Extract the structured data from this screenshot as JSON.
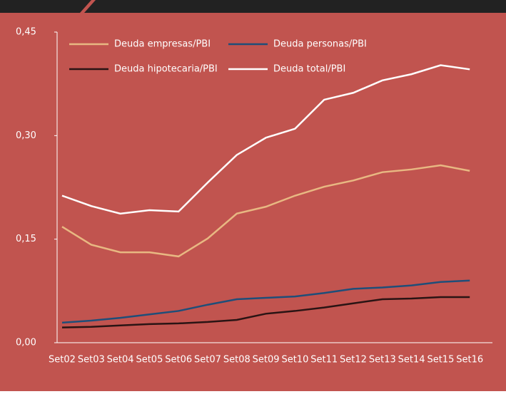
{
  "chart_data": {
    "type": "line",
    "categories": [
      "Set02",
      "Set03",
      "Set04",
      "Set05",
      "Set06",
      "Set07",
      "Set08",
      "Set09",
      "Set10",
      "Set11",
      "Set12",
      "Set13",
      "Set14",
      "Set15",
      "Set16"
    ],
    "series": [
      {
        "name": "Deuda empresas/PBI",
        "color": "#e8b882",
        "values": [
          0.168,
          0.142,
          0.131,
          0.131,
          0.125,
          0.151,
          0.187,
          0.197,
          0.213,
          0.226,
          0.235,
          0.247,
          0.251,
          0.257,
          0.249
        ]
      },
      {
        "name": "Deuda personas/PBI",
        "color": "#1f4e79",
        "values": [
          0.029,
          0.032,
          0.036,
          0.041,
          0.046,
          0.055,
          0.063,
          0.065,
          0.067,
          0.072,
          0.078,
          0.08,
          0.083,
          0.088,
          0.09
        ]
      },
      {
        "name": "Deuda hipotecaria/PBI",
        "color": "#2a1414",
        "values": [
          0.022,
          0.023,
          0.025,
          0.027,
          0.028,
          0.03,
          0.033,
          0.042,
          0.046,
          0.051,
          0.057,
          0.063,
          0.064,
          0.066,
          0.066
        ]
      },
      {
        "name": "Deuda total/PBI",
        "color": "#ffffff",
        "values": [
          0.213,
          0.198,
          0.187,
          0.192,
          0.19,
          0.232,
          0.272,
          0.297,
          0.31,
          0.352,
          0.362,
          0.38,
          0.389,
          0.402,
          0.396
        ]
      }
    ],
    "ylim": [
      0,
      0.45
    ],
    "yticks": [
      {
        "value": 0,
        "label": "0,00"
      },
      {
        "value": 0.15,
        "label": "0,15"
      },
      {
        "value": 0.3,
        "label": "0,30"
      },
      {
        "value": 0.45,
        "label": "0,45"
      }
    ]
  }
}
